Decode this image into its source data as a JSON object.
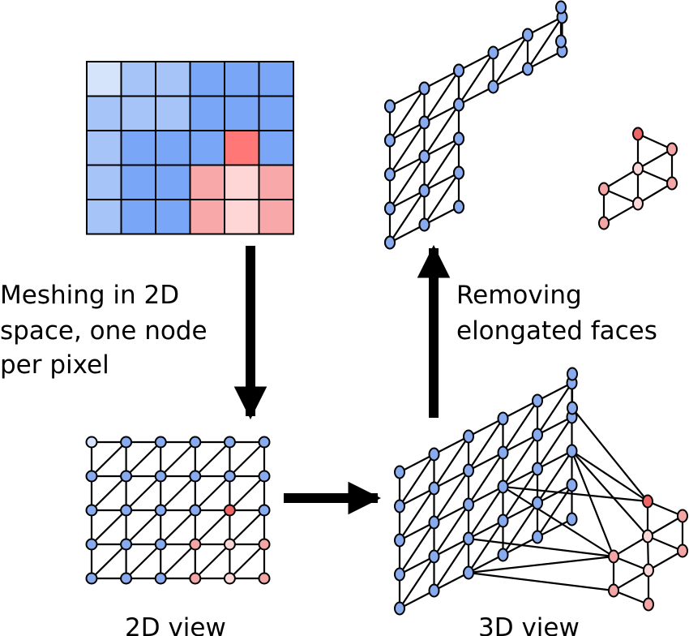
{
  "labels": {
    "meshing": [
      "Meshing in 2D",
      "space, one node",
      "per pixel"
    ],
    "removing": [
      "Removing",
      "elongated faces"
    ],
    "view2d": "2D view",
    "view3d": "3D view"
  },
  "colors": {
    "edge": "#000000",
    "node_blue": "#88aaee",
    "node_light_blue": "#d6e4fb",
    "node_red": "#ee6666",
    "node_pink": "#f4a5a5",
    "node_light_pink": "#fad6d6"
  },
  "pixel_grid": {
    "rows": 5,
    "cols": 6,
    "colors": [
      [
        "#d6e4fb",
        "#a6c4f7",
        "#a6c4f7",
        "#7aa6f7",
        "#7aa6f7",
        "#7aa6f7"
      ],
      [
        "#a6c4f7",
        "#a6c4f7",
        "#a6c4f7",
        "#7aa6f7",
        "#7aa6f7",
        "#7aa6f7"
      ],
      [
        "#a6c4f7",
        "#7aa6f7",
        "#7aa6f7",
        "#7aa6f7",
        "#ff7777",
        "#7aa6f7"
      ],
      [
        "#a6c4f7",
        "#7aa6f7",
        "#7aa6f7",
        "#f8a8a8",
        "#ffd6d6",
        "#f8a8a8"
      ],
      [
        "#a6c4f7",
        "#7aa6f7",
        "#7aa6f7",
        "#f8a8a8",
        "#ffd6d6",
        "#f8a8a8"
      ]
    ]
  },
  "mesh_2d": {
    "rows": 5,
    "cols": 6,
    "node_colors": [
      [
        "#d6e4fb",
        "#88aaee",
        "#88aaee",
        "#88aaee",
        "#88aaee",
        "#88aaee"
      ],
      [
        "#88aaee",
        "#88aaee",
        "#88aaee",
        "#88aaee",
        "#88aaee",
        "#88aaee"
      ],
      [
        "#88aaee",
        "#88aaee",
        "#88aaee",
        "#88aaee",
        "#ee6666",
        "#88aaee"
      ],
      [
        "#88aaee",
        "#88aaee",
        "#88aaee",
        "#f4a5a5",
        "#fad6d6",
        "#f4a5a5"
      ],
      [
        "#88aaee",
        "#88aaee",
        "#88aaee",
        "#f4a5a5",
        "#fad6d6",
        "#f4a5a5"
      ]
    ]
  }
}
